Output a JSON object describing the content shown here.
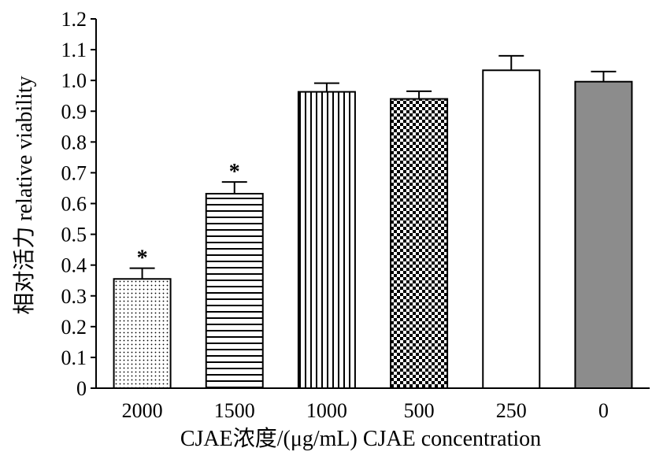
{
  "chart_data": {
    "type": "bar",
    "title": "",
    "xlabel": "CJAE浓度/(μg/mL) CJAE concentration",
    "ylabel": "相对活力 relative viability",
    "ylim": [
      0,
      1.2
    ],
    "yticks": [
      "0",
      "0.1",
      "0.2",
      "0.3",
      "0.4",
      "0.5",
      "0.6",
      "0.7",
      "0.8",
      "0.9",
      "1.0",
      "1.1",
      "1.2"
    ],
    "categories": [
      "2000",
      "1500",
      "1000",
      "500",
      "250",
      "0"
    ],
    "values": [
      0.355,
      0.632,
      0.963,
      0.94,
      1.033,
      0.996
    ],
    "errors": [
      0.035,
      0.038,
      0.028,
      0.025,
      0.047,
      0.033
    ],
    "significance": [
      "*",
      "*",
      "",
      "",
      "",
      ""
    ],
    "fills": [
      "dots",
      "horizontal-lines",
      "vertical-lines",
      "checker",
      "white",
      "gray"
    ],
    "gray_color": "#8c8c8c",
    "grid": false,
    "legend": "none"
  }
}
